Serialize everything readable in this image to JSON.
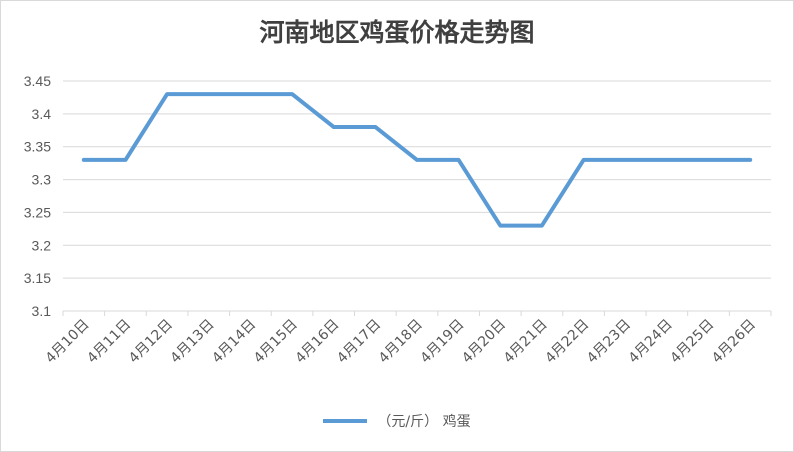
{
  "chart_data": {
    "type": "line",
    "title": "河南地区鸡蛋价格走势图",
    "categories": [
      "4月10日",
      "4月11日",
      "4月12日",
      "4月13日",
      "4月14日",
      "4月15日",
      "4月16日",
      "4月17日",
      "4月18日",
      "4月19日",
      "4月20日",
      "4月21日",
      "4月22日",
      "4月23日",
      "4月24日",
      "4月25日",
      "4月26日"
    ],
    "series": [
      {
        "name": "（元/斤） 鸡蛋",
        "color": "#5b9bd5",
        "values": [
          3.33,
          3.33,
          3.43,
          3.43,
          3.43,
          3.43,
          3.38,
          3.38,
          3.33,
          3.33,
          3.23,
          3.23,
          3.33,
          3.33,
          3.33,
          3.33,
          3.33
        ]
      }
    ],
    "yticks": [
      "3.1",
      "3.15",
      "3.2",
      "3.25",
      "3.3",
      "3.35",
      "3.4",
      "3.45"
    ],
    "ylim": [
      3.1,
      3.45
    ],
    "grid": true,
    "legend_position": "bottom"
  }
}
